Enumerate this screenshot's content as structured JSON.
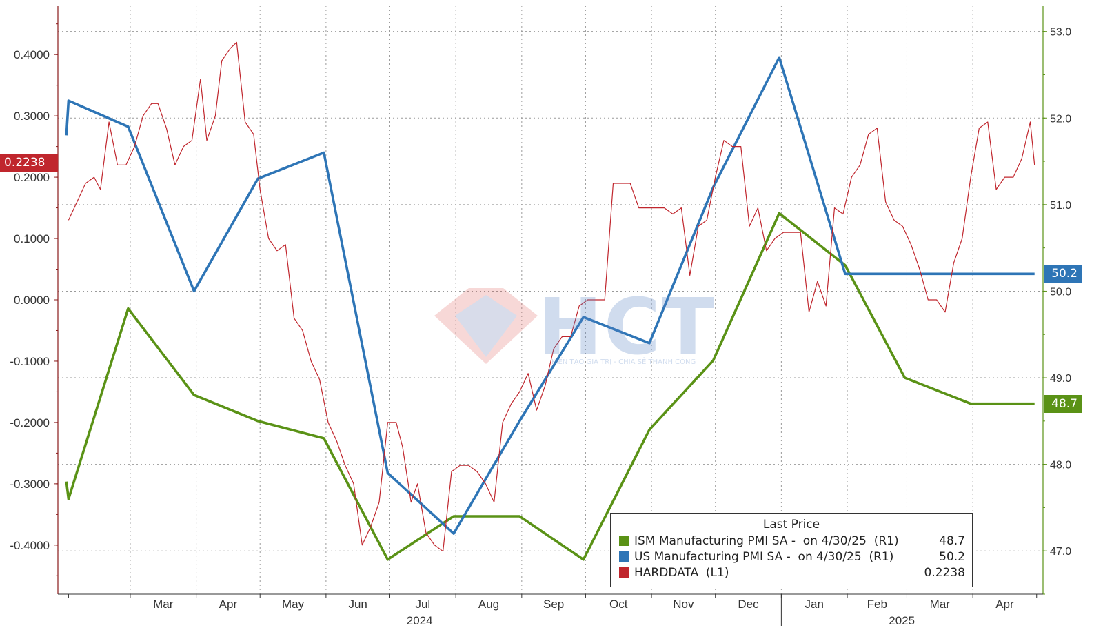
{
  "chart_data": {
    "type": "line",
    "title": "",
    "watermark": {
      "text": "HCT",
      "subtitle": "KIẾN TẠO GIÁ TRỊ - CHIA SẺ THÀNH CÔNG"
    },
    "x_ticks": [
      "Mar",
      "Apr",
      "May",
      "Jun",
      "Jul",
      "Aug",
      "Sep",
      "Oct",
      "Nov",
      "Dec",
      "Jan",
      "Feb",
      "Mar",
      "Apr"
    ],
    "x_years": [
      "2024",
      "2025"
    ],
    "left_axis": {
      "ylim": [
        -0.48,
        0.48
      ],
      "ticks": [
        "0.4000",
        "0.3000",
        "0.2000",
        "0.1000",
        "0.0000",
        "-0.1000",
        "-0.2000",
        "-0.3000",
        "-0.4000"
      ]
    },
    "right_axis": {
      "ylim": [
        46.5,
        53.3
      ],
      "ticks": [
        "53.0",
        "52.0",
        "51.0",
        "50.0",
        "49.0",
        "48.0",
        "47.0"
      ]
    },
    "grid": true,
    "legend": {
      "title": "Last Price",
      "placement": "bottom-right",
      "entries": [
        {
          "name": "ISM Manufacturing PMI SA -  on 4/30/25  (R1)",
          "value": "48.7",
          "color": "#5a9216"
        },
        {
          "name": "US Manufacturing PMI SA -  on 4/30/25  (R1)",
          "value": "50.2",
          "color": "#2e75b6"
        },
        {
          "name": "HARDDATA  (L1)",
          "value": "0.2238",
          "color": "#c0262d"
        }
      ]
    },
    "last_value_tags": [
      {
        "series": "HARDDATA",
        "value": "0.2238",
        "color": "#c0262d"
      },
      {
        "series": "US Manufacturing PMI SA",
        "value": "50.2",
        "color": "#2e75b6"
      },
      {
        "series": "ISM Manufacturing PMI SA",
        "value": "48.7",
        "color": "#5a9216"
      }
    ],
    "series": [
      {
        "name": "ISM Manufacturing PMI SA",
        "axis": "right",
        "color": "#5a9216",
        "x": [
          "2024-01-31",
          "2024-02-01",
          "2024-02-29",
          "2024-03-31",
          "2024-04-30",
          "2024-05-31",
          "2024-06-30",
          "2024-07-31",
          "2024-08-31",
          "2024-09-30",
          "2024-10-31",
          "2024-11-30",
          "2024-12-31",
          "2025-01-31",
          "2025-02-28",
          "2025-03-31",
          "2025-04-30"
        ],
        "y": [
          47.8,
          47.6,
          49.8,
          48.8,
          48.5,
          48.3,
          46.9,
          47.4,
          47.4,
          46.9,
          48.4,
          49.2,
          50.9,
          50.3,
          49.0,
          48.7,
          48.7
        ]
      },
      {
        "name": "US Manufacturing PMI SA",
        "axis": "right",
        "color": "#2e75b6",
        "x": [
          "2024-01-31",
          "2024-02-01",
          "2024-02-29",
          "2024-03-31",
          "2024-04-30",
          "2024-05-31",
          "2024-06-30",
          "2024-07-31",
          "2024-08-31",
          "2024-09-30",
          "2024-10-31",
          "2024-11-30",
          "2024-12-31",
          "2025-01-31",
          "2025-02-28",
          "2025-03-31",
          "2025-04-30"
        ],
        "y": [
          51.8,
          52.2,
          51.9,
          50.0,
          51.3,
          51.6,
          47.9,
          47.2,
          48.5,
          49.7,
          49.4,
          51.2,
          52.7,
          50.2,
          50.2,
          50.2,
          50.2
        ]
      },
      {
        "name": "HARDDATA",
        "axis": "left",
        "color": "#c0262d",
        "x": [
          "2024-02-01",
          "2024-02-05",
          "2024-02-09",
          "2024-02-13",
          "2024-02-16",
          "2024-02-20",
          "2024-02-24",
          "2024-02-28",
          "2024-03-03",
          "2024-03-07",
          "2024-03-11",
          "2024-03-14",
          "2024-03-18",
          "2024-03-22",
          "2024-03-26",
          "2024-03-30",
          "2024-04-03",
          "2024-04-06",
          "2024-04-10",
          "2024-04-13",
          "2024-04-17",
          "2024-04-20",
          "2024-04-24",
          "2024-04-28",
          "2024-05-01",
          "2024-05-05",
          "2024-05-09",
          "2024-05-13",
          "2024-05-17",
          "2024-05-21",
          "2024-05-25",
          "2024-05-29",
          "2024-06-02",
          "2024-06-06",
          "2024-06-10",
          "2024-06-14",
          "2024-06-18",
          "2024-06-22",
          "2024-06-26",
          "2024-06-30",
          "2024-07-04",
          "2024-07-07",
          "2024-07-11",
          "2024-07-14",
          "2024-07-18",
          "2024-07-22",
          "2024-07-26",
          "2024-07-30",
          "2024-08-03",
          "2024-08-07",
          "2024-08-11",
          "2024-08-15",
          "2024-08-19",
          "2024-08-23",
          "2024-08-27",
          "2024-08-31",
          "2024-09-04",
          "2024-09-08",
          "2024-09-12",
          "2024-09-16",
          "2024-09-20",
          "2024-09-24",
          "2024-09-28",
          "2024-10-02",
          "2024-10-06",
          "2024-10-10",
          "2024-10-14",
          "2024-10-18",
          "2024-10-22",
          "2024-10-26",
          "2024-10-30",
          "2024-11-03",
          "2024-11-07",
          "2024-11-11",
          "2024-11-15",
          "2024-11-19",
          "2024-11-23",
          "2024-11-27",
          "2024-12-01",
          "2024-12-05",
          "2024-12-09",
          "2024-12-13",
          "2024-12-17",
          "2024-12-21",
          "2024-12-25",
          "2024-12-29",
          "2025-01-02",
          "2025-01-06",
          "2025-01-10",
          "2025-01-14",
          "2025-01-18",
          "2025-01-22",
          "2025-01-26",
          "2025-01-30",
          "2025-02-03",
          "2025-02-07",
          "2025-02-11",
          "2025-02-15",
          "2025-02-19",
          "2025-02-23",
          "2025-02-27",
          "2025-03-03",
          "2025-03-07",
          "2025-03-11",
          "2025-03-15",
          "2025-03-19",
          "2025-03-23",
          "2025-03-27",
          "2025-03-31",
          "2025-04-04",
          "2025-04-08",
          "2025-04-12",
          "2025-04-16",
          "2025-04-20",
          "2025-04-24",
          "2025-04-28",
          "2025-04-30"
        ],
        "y": [
          0.13,
          0.16,
          0.19,
          0.2,
          0.18,
          0.29,
          0.22,
          0.22,
          0.25,
          0.3,
          0.32,
          0.32,
          0.28,
          0.22,
          0.25,
          0.26,
          0.36,
          0.26,
          0.3,
          0.39,
          0.41,
          0.42,
          0.29,
          0.27,
          0.18,
          0.1,
          0.08,
          0.09,
          -0.03,
          -0.05,
          -0.1,
          -0.13,
          -0.2,
          -0.23,
          -0.27,
          -0.3,
          -0.4,
          -0.37,
          -0.33,
          -0.2,
          -0.2,
          -0.24,
          -0.33,
          -0.3,
          -0.38,
          -0.4,
          -0.41,
          -0.28,
          -0.27,
          -0.27,
          -0.28,
          -0.3,
          -0.33,
          -0.2,
          -0.17,
          -0.15,
          -0.12,
          -0.18,
          -0.14,
          -0.08,
          -0.06,
          -0.06,
          -0.01,
          0.0,
          0.0,
          0.0,
          0.19,
          0.19,
          0.19,
          0.15,
          0.15,
          0.15,
          0.15,
          0.14,
          0.15,
          0.04,
          0.12,
          0.13,
          0.2,
          0.26,
          0.25,
          0.25,
          0.12,
          0.15,
          0.08,
          0.1,
          0.11,
          0.11,
          0.11,
          -0.02,
          0.03,
          -0.01,
          0.15,
          0.14,
          0.2,
          0.22,
          0.27,
          0.28,
          0.16,
          0.13,
          0.12,
          0.09,
          0.05,
          0.0,
          0.0,
          -0.02,
          0.06,
          0.1,
          0.2,
          0.28,
          0.29,
          0.18,
          0.2,
          0.2,
          0.23,
          0.29,
          0.22
        ]
      }
    ]
  }
}
